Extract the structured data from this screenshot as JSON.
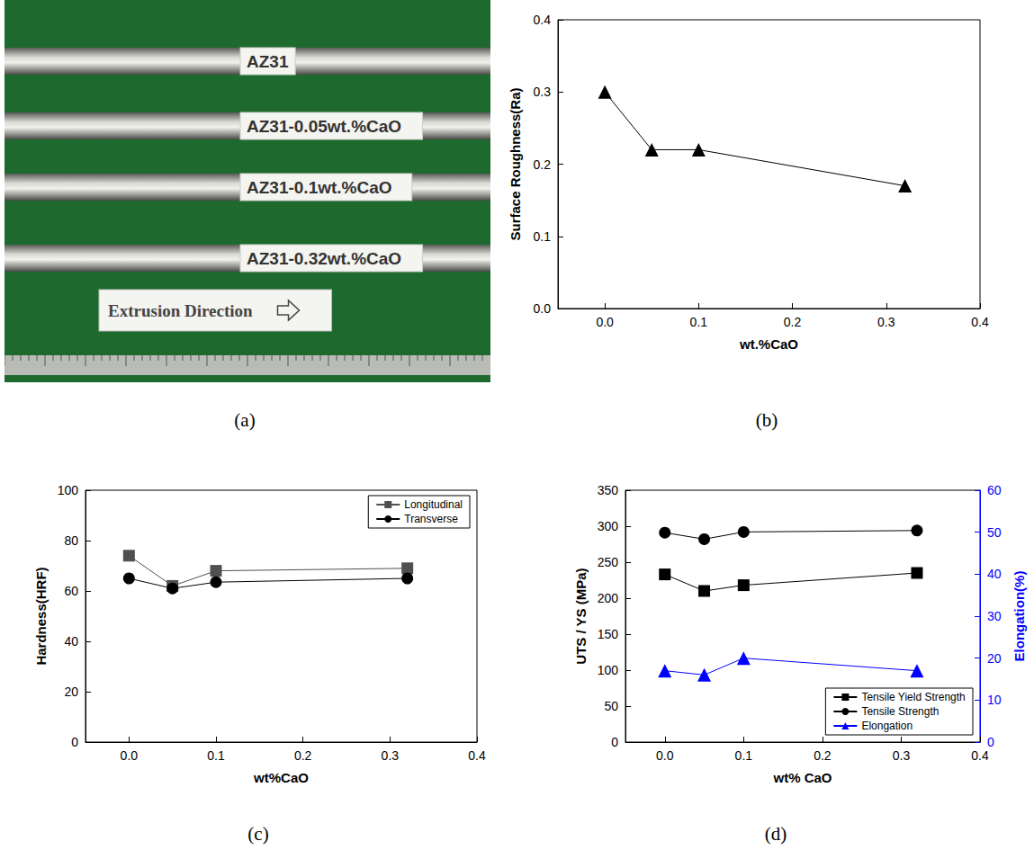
{
  "photo": {
    "panel": "(a)",
    "labels": [
      "AZ31",
      "AZ31-0.05wt.%CaO",
      "AZ31-0.1wt.%CaO",
      "AZ31-0.32wt.%CaO"
    ],
    "caption": "Extrusion Direction"
  },
  "chart_data": [
    {
      "type": "line",
      "panel": "(b)",
      "xlabel": "wt.%CaO",
      "ylabel": "Surface Roughness(Ra)",
      "x": [
        0,
        0.05,
        0.1,
        0.32
      ],
      "values": [
        0.3,
        0.22,
        0.22,
        0.17
      ],
      "color": "#000000",
      "marker": "triangle",
      "xlim": [
        -0.05,
        0.4
      ],
      "xticks": [
        {
          "value": 0,
          "label": "0.0"
        },
        0.1,
        0.2,
        0.3,
        0.4
      ],
      "ylim": [
        0,
        0.4
      ],
      "yticks": [
        {
          "value": 0,
          "label": "0.0"
        },
        0.1,
        0.2,
        0.3,
        0.4
      ],
      "grid": false
    },
    {
      "type": "line",
      "panel": "(c)",
      "xlabel": "wt%CaO",
      "ylabel": "Hardness(HRF)",
      "x": [
        0,
        0.05,
        0.1,
        0.32
      ],
      "series": [
        {
          "name": "Longitudinal",
          "color": "#505050",
          "marker": "square",
          "values": [
            74,
            62,
            68,
            69
          ]
        },
        {
          "name": "Transverse",
          "color": "#000000",
          "marker": "circle",
          "values": [
            65,
            61,
            63.5,
            65
          ]
        }
      ],
      "xlim": [
        -0.05,
        0.4
      ],
      "xticks": [
        {
          "value": 0,
          "label": "0.0"
        },
        0.1,
        0.2,
        0.3,
        0.4
      ],
      "ylim": [
        0,
        100
      ],
      "yticks": [
        0,
        20,
        40,
        60,
        80,
        100
      ],
      "legend": "top-right",
      "grid": false
    },
    {
      "type": "line",
      "panel": "(d)",
      "xlabel": "wt% CaO",
      "ylabel": "UTS / YS (MPa)",
      "y2label": "Elongation(%)",
      "x": [
        0,
        0.05,
        0.1,
        0.32
      ],
      "series": [
        {
          "name": "Tensile Yield Strength",
          "color": "#000000",
          "marker": "square",
          "values": [
            233,
            210,
            218,
            235
          ]
        },
        {
          "name": "Tensile Strength",
          "color": "#000000",
          "marker": "circle",
          "values": [
            291,
            282,
            292,
            294
          ]
        },
        {
          "name": "Elongation",
          "color": "#0000ff",
          "marker": "triangle",
          "axis": "y2",
          "values": [
            17,
            16,
            20,
            17
          ]
        }
      ],
      "xlim": [
        -0.05,
        0.4
      ],
      "xticks": [
        {
          "value": 0,
          "label": "0.0"
        },
        0.1,
        0.2,
        0.3,
        0.4
      ],
      "ylim": [
        0,
        350
      ],
      "yticks": [
        0,
        50,
        100,
        150,
        200,
        250,
        300,
        350
      ],
      "y2lim": [
        0,
        60
      ],
      "y2ticks": [
        0,
        10,
        20,
        30,
        40,
        50,
        60
      ],
      "legend": "bottom-right",
      "grid": false
    }
  ]
}
